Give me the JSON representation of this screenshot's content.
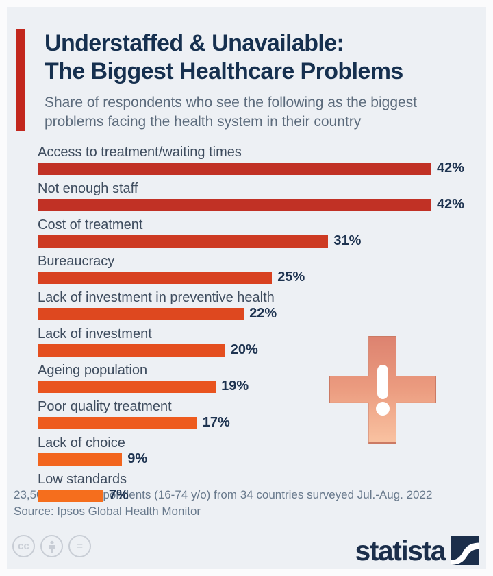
{
  "header": {
    "title_line1": "Understaffed & Unavailable:",
    "title_line2": "The Biggest Healthcare Problems",
    "subtitle": "Share of respondents who see the following as the biggest problems facing the health system in their country"
  },
  "chart_data": {
    "type": "bar",
    "orientation": "horizontal",
    "title": "Understaffed & Unavailable: The Biggest Healthcare Problems",
    "subtitle": "Share of respondents who see the following as the biggest problems facing the health system in their country",
    "categories": [
      "Access to treatment/waiting times",
      "Not enough staff",
      "Cost of treatment",
      "Bureaucracy",
      "Lack of investment in preventive health",
      "Lack of investment",
      "Ageing population",
      "Poor quality treatment",
      "Lack of choice",
      "Low standards"
    ],
    "values": [
      42,
      42,
      31,
      25,
      22,
      20,
      19,
      17,
      9,
      7
    ],
    "value_labels": [
      "42%",
      "42%",
      "31%",
      "25%",
      "22%",
      "20%",
      "19%",
      "17%",
      "9%",
      "7%"
    ],
    "unit": "%",
    "axis_max": 42,
    "grid": false,
    "legend": false,
    "bar_colors": [
      "#c13125",
      "#c13125",
      "#cd3a22",
      "#d84120",
      "#de481f",
      "#e44e1f",
      "#e9541f",
      "#ee5b1e",
      "#f2651e",
      "#f56e1d"
    ]
  },
  "footer": {
    "note": "23,507 online respondents (16-74 y/o) from 34 countries surveyed Jul.-Aug. 2022",
    "source": "Source: Ipsos Global Health Monitor"
  },
  "branding": {
    "logo_text": "statista",
    "license_icons": [
      "cc-icon",
      "attribution-person-icon",
      "no-derivatives-equals-icon"
    ],
    "cc_label": "cc",
    "equals_label": "="
  },
  "colors": {
    "background": "#edf0f4",
    "accent_red": "#c2271d",
    "title_navy": "#16304f",
    "subtitle_gray": "#5c6b7c",
    "label_slate": "#3e4c5e",
    "value_navy": "#1e3350",
    "cross_top": "#dd8370",
    "cross_bottom": "#f9c2a1",
    "license_gray": "#c8cdd5",
    "logo_navy": "#1b2e4a"
  }
}
